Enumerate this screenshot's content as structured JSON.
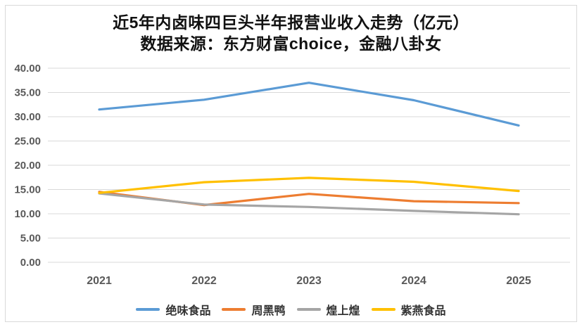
{
  "page": {
    "background_color": "#ffffff",
    "frame_border_color": "#d9d9d9"
  },
  "chart_data": {
    "type": "line",
    "title": "近5年内卤味四巨头半年报营业收入走势（亿元）",
    "subtitle": "数据来源：东方财富choice，金融八卦女",
    "categories": [
      "2021",
      "2022",
      "2023",
      "2024",
      "2025"
    ],
    "series": [
      {
        "name": "绝味食品",
        "color": "#5B9BD5",
        "values": [
          31.5,
          33.5,
          37.0,
          33.4,
          28.2
        ]
      },
      {
        "name": "周黑鸭",
        "color": "#ED7D31",
        "values": [
          14.5,
          11.8,
          14.1,
          12.6,
          12.2
        ]
      },
      {
        "name": "煌上煌",
        "color": "#A5A5A5",
        "values": [
          14.2,
          11.9,
          11.4,
          10.6,
          9.9
        ]
      },
      {
        "name": "紫燕食品",
        "color": "#FFC000",
        "values": [
          14.3,
          16.5,
          17.4,
          16.6,
          14.7
        ]
      }
    ],
    "y_ticks": [
      "0.00",
      "5.00",
      "10.00",
      "15.00",
      "20.00",
      "25.00",
      "30.00",
      "35.00",
      "40.00"
    ],
    "ylim": [
      0,
      40
    ],
    "grid": true,
    "gridline_color": "#d9d9d9",
    "axis_label_color": "#595959",
    "legend_label_color": "#333333",
    "legend_position": "bottom"
  }
}
